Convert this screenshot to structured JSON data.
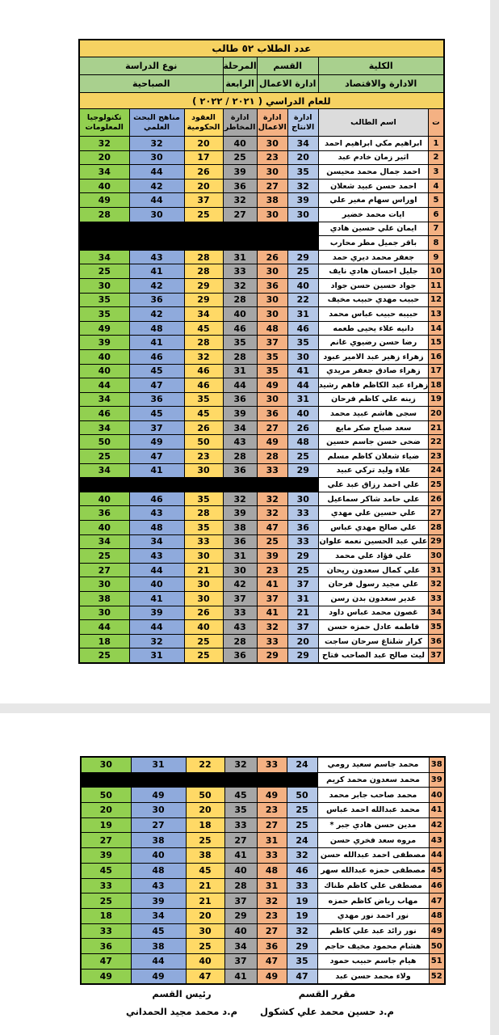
{
  "colors": {
    "title_bg": "#f6d262",
    "info_bg": "#a9d08e",
    "serial_bg": "#f4b183",
    "name_header_bg": "#dcdcdc",
    "blackout": "#000000"
  },
  "header": {
    "students_count_title": "عدد الطلاب ٥٢ طالب",
    "college_label": "الكلية",
    "college_value": "الادارة والاقتصاد",
    "department_label": "القسم",
    "department_value": "ادارة الاعمال",
    "stage_label": "المرحلة",
    "stage_value": "الرابعة",
    "study_type_label": "نوع الدراسة",
    "study_type_value": "الصباحية",
    "academic_year": "للعام الدراسي ( ٢٠٢١ / ٢٠٢٢ )",
    "serial_label": "ت",
    "student_name_label": "اسم الطالب"
  },
  "subjects": [
    {
      "key": "production",
      "label": "ادارة الانتاج",
      "color": "#b4c7e7"
    },
    {
      "key": "business",
      "label": "ادارة الاعمال",
      "color": "#f4b183"
    },
    {
      "key": "risk",
      "label": "ادارة المخاطر",
      "color": "#a6a6a6"
    },
    {
      "key": "contracts",
      "label": "العقود الحكومية",
      "color": "#ffd966"
    },
    {
      "key": "research",
      "label": "مناهج البحث العلمي",
      "color": "#8faadc"
    },
    {
      "key": "tech",
      "label": "تكنولوجيا المعلومات",
      "color": "#92d050"
    }
  ],
  "pages": [
    {
      "rows": [
        {
          "no": 1,
          "name": "ابراهيم مكي ابراهيم احمد",
          "scores": [
            34,
            30,
            40,
            20,
            32,
            32
          ]
        },
        {
          "no": 2,
          "name": "اثير زمان خادم عبد",
          "scores": [
            20,
            23,
            25,
            17,
            30,
            20
          ]
        },
        {
          "no": 3,
          "name": "احمد جمال محمد محيسن",
          "scores": [
            35,
            30,
            39,
            26,
            44,
            34
          ]
        },
        {
          "no": 4,
          "name": "احمد حسن عبيد شعلان",
          "scores": [
            32,
            27,
            36,
            20,
            42,
            40
          ]
        },
        {
          "no": 5,
          "name": "اوراس سهام مغير علي",
          "scores": [
            39,
            38,
            32,
            37,
            44,
            49
          ]
        },
        {
          "no": 6,
          "name": "ايات محمد خضير",
          "scores": [
            30,
            30,
            27,
            25,
            30,
            28
          ]
        },
        {
          "no": 7,
          "name": "ايمان علي حسين هادي",
          "scores": null
        },
        {
          "no": 8,
          "name": "باقر جميل مطر محارب",
          "scores": null
        },
        {
          "no": 9,
          "name": "جعفر محمد ديري حمد",
          "scores": [
            29,
            26,
            31,
            28,
            43,
            34
          ]
        },
        {
          "no": 10,
          "name": "جليل احسان هادي نايف",
          "scores": [
            25,
            30,
            33,
            28,
            41,
            25
          ]
        },
        {
          "no": 11,
          "name": "جواد حسين حسن جواد",
          "scores": [
            40,
            36,
            32,
            29,
            42,
            30
          ]
        },
        {
          "no": 12,
          "name": "حبيب مهدي حبيب مخيف",
          "scores": [
            22,
            30,
            28,
            29,
            36,
            35
          ]
        },
        {
          "no": 13,
          "name": "حبيبه حبيب عباس محمد",
          "scores": [
            31,
            30,
            40,
            34,
            42,
            35
          ]
        },
        {
          "no": 14,
          "name": "دانيه علاء يحيى طعمه",
          "scores": [
            46,
            48,
            46,
            45,
            48,
            49
          ]
        },
        {
          "no": 15,
          "name": "رضا حسن رضيوي غانم",
          "scores": [
            35,
            37,
            35,
            28,
            41,
            39
          ]
        },
        {
          "no": 16,
          "name": "زهراء زهير عبد الامير عبود",
          "scores": [
            30,
            35,
            28,
            32,
            46,
            40
          ]
        },
        {
          "no": 17,
          "name": "زهراء صادق جعفر مريدي",
          "scores": [
            41,
            35,
            31,
            46,
            45,
            40
          ]
        },
        {
          "no": 18,
          "name": "زهراء عبد الكاظم فاهم رشيد",
          "scores": [
            44,
            49,
            44,
            46,
            47,
            44
          ]
        },
        {
          "no": 19,
          "name": "زينه علي كاظم فرحان",
          "scores": [
            31,
            30,
            36,
            35,
            36,
            34
          ]
        },
        {
          "no": 20,
          "name": "سجى هاشم عبيد محمد",
          "scores": [
            40,
            36,
            39,
            45,
            45,
            46
          ]
        },
        {
          "no": 21,
          "name": "سعد صباح صكر مايع",
          "scores": [
            26,
            27,
            34,
            26,
            37,
            34
          ]
        },
        {
          "no": 22,
          "name": "ضحى حسن جاسم حسين",
          "scores": [
            48,
            49,
            43,
            50,
            49,
            50
          ]
        },
        {
          "no": 23,
          "name": "ضياء شعلان كاظم مسلم",
          "scores": [
            25,
            28,
            28,
            23,
            47,
            25
          ]
        },
        {
          "no": 24,
          "name": "علاء وليد تركي عبيد",
          "scores": [
            29,
            33,
            36,
            30,
            41,
            34
          ]
        },
        {
          "no": 25,
          "name": "علي احمد رزاق عبد علي",
          "scores": null
        },
        {
          "no": 26,
          "name": "علي حامد شاكر سماعيل",
          "scores": [
            30,
            32,
            32,
            35,
            46,
            40
          ]
        },
        {
          "no": 27,
          "name": "علي حسين علي مهدي",
          "scores": [
            33,
            32,
            39,
            28,
            43,
            36
          ]
        },
        {
          "no": 28,
          "name": "علي صالح مهدي عباس",
          "scores": [
            36,
            47,
            38,
            35,
            48,
            40
          ]
        },
        {
          "no": 29,
          "name": "علي عبد الحسين نعمه علوان",
          "scores": [
            33,
            25,
            36,
            33,
            34,
            34
          ]
        },
        {
          "no": 30,
          "name": "علي فؤاد علي محمد",
          "scores": [
            29,
            39,
            31,
            30,
            43,
            25
          ]
        },
        {
          "no": 31,
          "name": "علي كمال سعدون ريحان",
          "scores": [
            25,
            23,
            30,
            21,
            44,
            27
          ]
        },
        {
          "no": 32,
          "name": "علي مجيد رسول فرحان",
          "scores": [
            37,
            41,
            42,
            30,
            40,
            30
          ]
        },
        {
          "no": 33,
          "name": "غدير سعدون بدن رسن",
          "scores": [
            31,
            37,
            37,
            30,
            41,
            38
          ]
        },
        {
          "no": 34,
          "name": "غصون محمد عباس داود",
          "scores": [
            21,
            41,
            33,
            26,
            39,
            30
          ]
        },
        {
          "no": 35,
          "name": "فاطمه عادل حمزه حسن",
          "scores": [
            37,
            32,
            43,
            40,
            44,
            44
          ]
        },
        {
          "no": 36,
          "name": "كرار شلتاغ سرحان ساجت",
          "scores": [
            20,
            33,
            28,
            25,
            32,
            18
          ]
        },
        {
          "no": 37,
          "name": "ليث صالح عبد الصاحب فتاح",
          "scores": [
            29,
            29,
            36,
            25,
            31,
            25
          ]
        }
      ]
    },
    {
      "rows": [
        {
          "no": 38,
          "name": "محمد جاسم سعيد رومي",
          "scores": [
            24,
            33,
            32,
            22,
            31,
            30
          ]
        },
        {
          "no": 39,
          "name": "محمد سعدون محمد كريم",
          "scores": null
        },
        {
          "no": 40,
          "name": "محمد صاحب جابر محمد",
          "scores": [
            50,
            49,
            45,
            50,
            49,
            50
          ]
        },
        {
          "no": 41,
          "name": "محمد عبدالله احمد عباس",
          "scores": [
            25,
            23,
            35,
            20,
            30,
            20
          ]
        },
        {
          "no": 42,
          "name": "مدين حسن هادي جبر *",
          "scores": [
            25,
            27,
            33,
            18,
            27,
            19
          ]
        },
        {
          "no": 43,
          "name": "مروه سعد فخري حسن",
          "scores": [
            24,
            31,
            27,
            25,
            38,
            27
          ]
        },
        {
          "no": 44,
          "name": "مصطفى احمد عبدالله حسن",
          "scores": [
            32,
            33,
            41,
            38,
            40,
            39
          ]
        },
        {
          "no": 45,
          "name": "مصطفى حمزه عبدالله سهر",
          "scores": [
            46,
            48,
            40,
            45,
            48,
            45
          ]
        },
        {
          "no": 46,
          "name": "مصطفى علي كاظم طناك",
          "scores": [
            33,
            31,
            28,
            21,
            43,
            33
          ]
        },
        {
          "no": 47,
          "name": "مهاب رياض كاظم حمزه",
          "scores": [
            19,
            32,
            37,
            21,
            39,
            25
          ]
        },
        {
          "no": 48,
          "name": "نور احمد نور مهدي",
          "scores": [
            19,
            23,
            29,
            20,
            34,
            18
          ]
        },
        {
          "no": 49,
          "name": "نور رائد عبد علي كاظم",
          "scores": [
            32,
            27,
            40,
            30,
            45,
            33
          ]
        },
        {
          "no": 50,
          "name": "هشام محمود مخيف حاجم",
          "scores": [
            29,
            36,
            34,
            25,
            38,
            36
          ]
        },
        {
          "no": 51,
          "name": "هيام جاسم حبيب حمود",
          "scores": [
            35,
            47,
            37,
            40,
            44,
            47
          ]
        },
        {
          "no": 52,
          "name": "ولاء محمد حسن عبد",
          "scores": [
            47,
            49,
            41,
            47,
            49,
            49
          ]
        }
      ]
    }
  ],
  "footer": {
    "right_role": "مقرر القسم",
    "right_name": "م.د حسين محمد علي كشكول",
    "left_role": "رئيس القسم",
    "left_name": "م.د محمد مجيد الحمداني"
  }
}
